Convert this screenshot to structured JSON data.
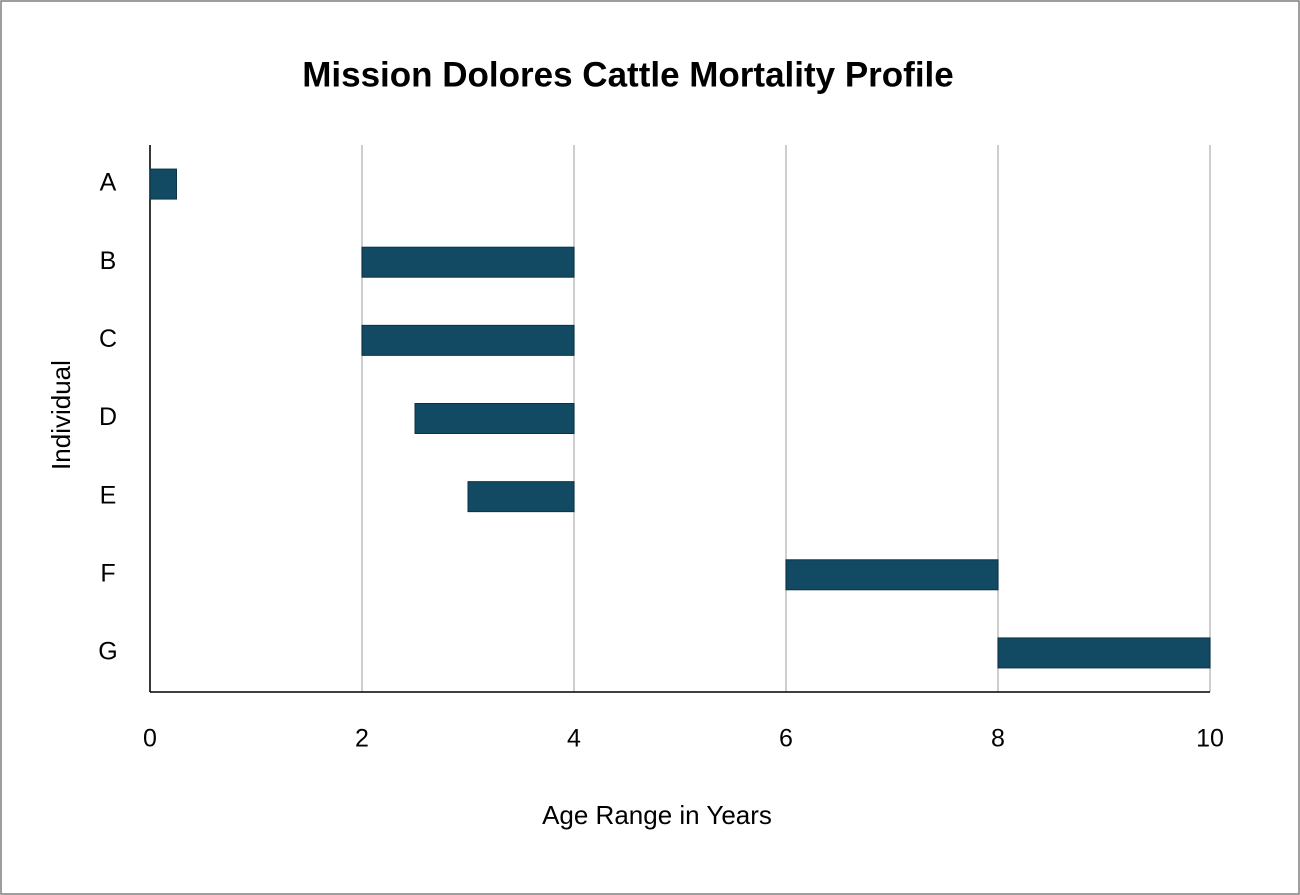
{
  "chart_data": {
    "type": "floating_bar",
    "title": "Mission Dolores Cattle Mortality Profile",
    "x_label": "Age Range in Years",
    "y_label": "Individual",
    "categories": [
      "A",
      "B",
      "C",
      "D",
      "E",
      "F",
      "G"
    ],
    "start": [
      0,
      2,
      2,
      2.5,
      3,
      6,
      8
    ],
    "end": [
      0.25,
      4,
      4,
      4,
      4,
      8,
      10
    ],
    "color": "#124a63",
    "xlim": [
      0,
      10
    ],
    "xticks": [
      0,
      2,
      4,
      6,
      8,
      10
    ],
    "grid": true
  }
}
